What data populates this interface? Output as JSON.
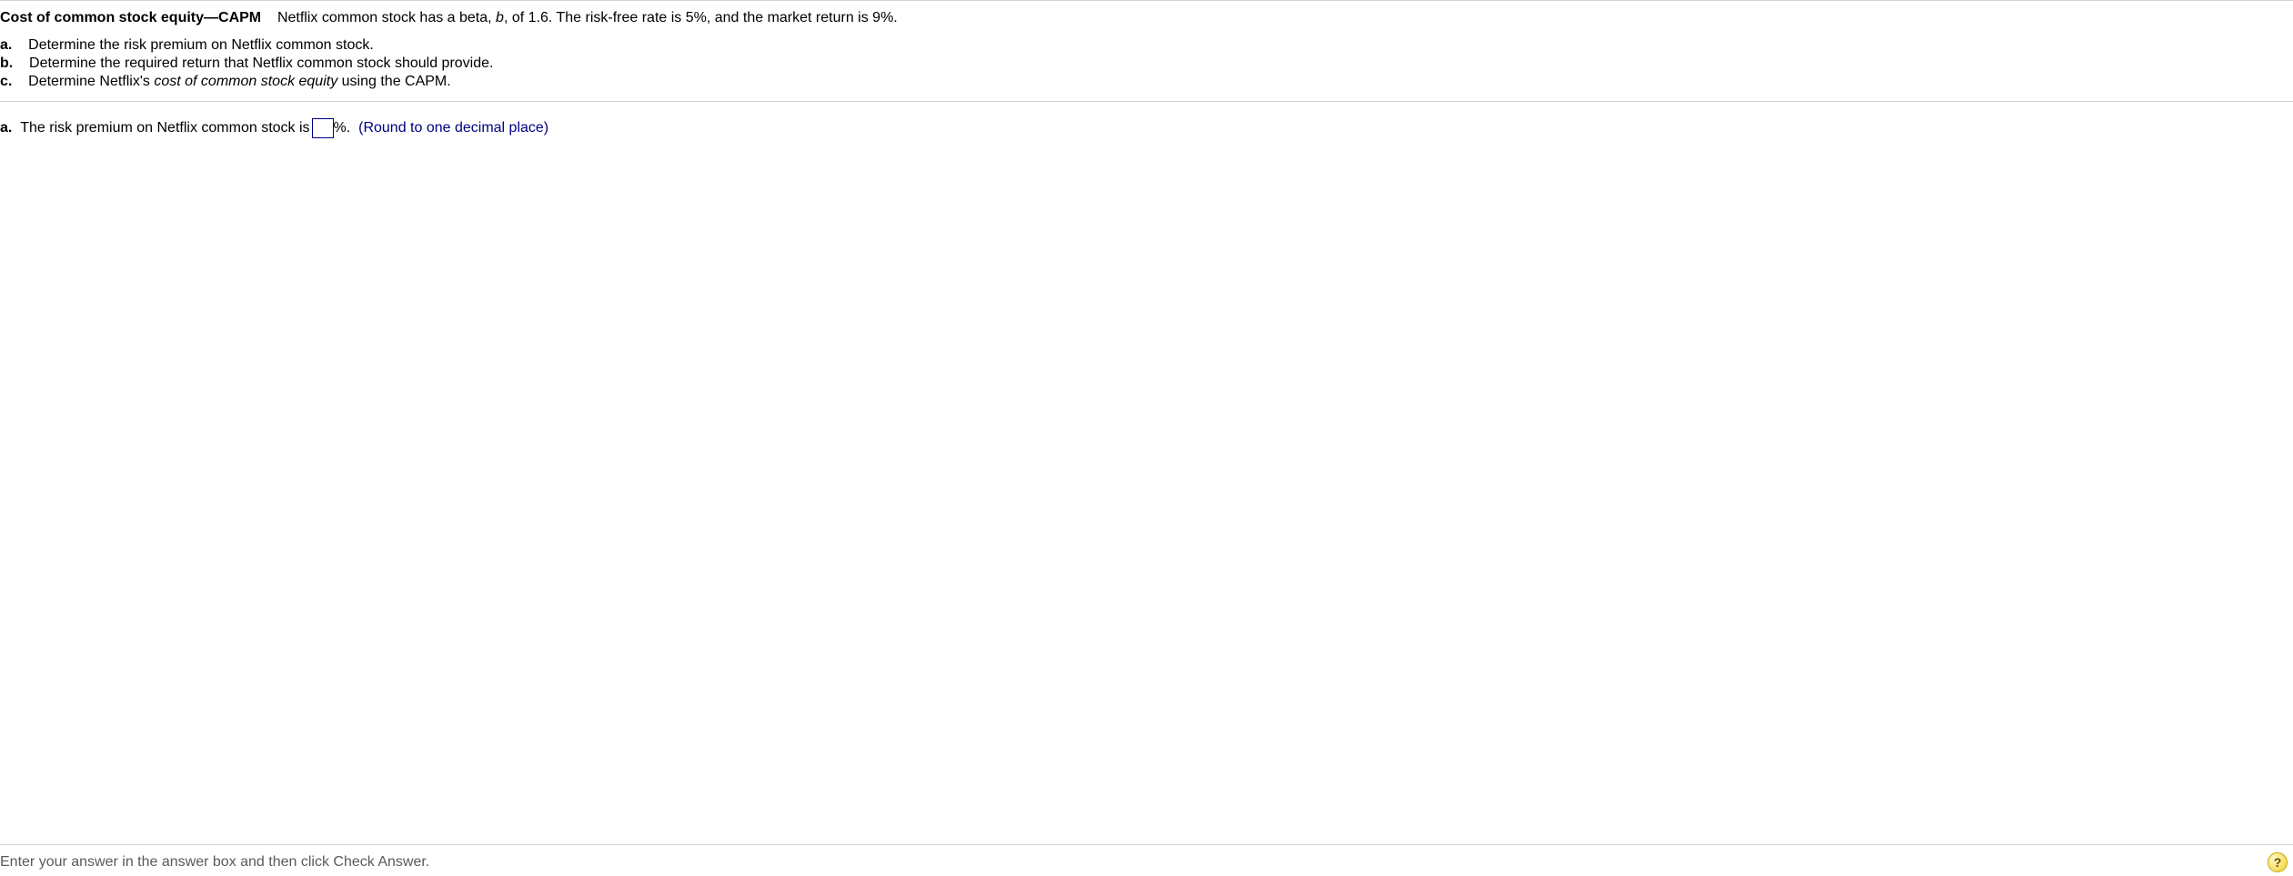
{
  "header": {
    "title_bold": "Cost of common stock equity—CAPM",
    "intro_a": "Netflix common stock has a beta, ",
    "intro_b_italic": "b",
    "intro_c": ", of 1.6.  The risk-free rate is 5%, and the market return is 9%."
  },
  "parts": {
    "a_letter": "a.",
    "a_text": "Determine the risk premium on Netflix common stock.",
    "b_letter": "b.",
    "b_text": "Determine the required return that Netflix common stock should provide.",
    "c_letter": "c.",
    "c_text_pre": "Determine Netflix's ",
    "c_text_italic": "cost of common stock equity",
    "c_text_post": " using the CAPM."
  },
  "answer": {
    "letter": "a.",
    "pre": "The risk premium on Netflix common stock is ",
    "value": "",
    "post_percent": "%.",
    "hint": "(Round to one decimal place)"
  },
  "footer": {
    "instruction": "Enter your answer in the answer box and then click Check Answer.",
    "help_glyph": "?"
  },
  "colors": {
    "text_black": "#000000",
    "text_blue": "#000080",
    "text_gray": "#5a5a5a",
    "border_gray": "#d3d3d3",
    "bg_white": "#ffffff"
  }
}
